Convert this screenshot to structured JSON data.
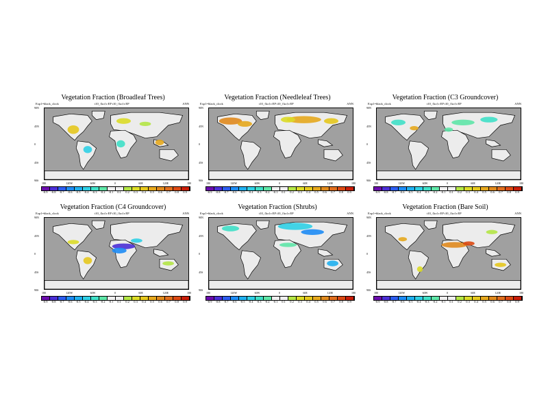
{
  "chart_data": {
    "type": "heatmap",
    "colorbar": {
      "labels": [
        "-0.9",
        "-0.8",
        "-0.7",
        "-0.6",
        "-0.5",
        "-0.4",
        "-0.3",
        "-0.2",
        "-0.1",
        "0.1",
        "0.2",
        "0.3",
        "0.4",
        "0.5",
        "0.6",
        "0.7",
        "0.8",
        "0.9"
      ],
      "colors": [
        "#6a0dad",
        "#4b2fd6",
        "#2d5df0",
        "#1e8cf5",
        "#20b0f0",
        "#30d0e6",
        "#40e0c8",
        "#5fe6a8",
        "#f0f0f0",
        "#f0f0f0",
        "#b4e646",
        "#dcdc28",
        "#e6c81e",
        "#e6a81e",
        "#e08a1e",
        "#e06e1e",
        "#dc4a14",
        "#c81e0a"
      ]
    },
    "x_ticks": [
      "180",
      "120W",
      "60W",
      "0",
      "60E",
      "120E",
      "180"
    ],
    "y_ticks": [
      "90N",
      "45N",
      "0",
      "45S",
      "90S"
    ],
    "panels": [
      {
        "title": "Vegetation Fraction (Broadleaf Trees)",
        "subtitle_left": "Exp1=black_clock",
        "subtitle_mid": "t10_{ko}r:EP  t10_{ko}r:EP",
        "subtitle_right": "ANN",
        "highlights": "broadleaf"
      },
      {
        "title": "Vegetation Fraction (Needleleaf Trees)",
        "subtitle_left": "Exp1=black_clock",
        "subtitle_mid": "t10_{ko}r:EP  t10_{ko}r:EP",
        "subtitle_right": "ANN",
        "highlights": "needleleaf"
      },
      {
        "title": "Vegetation Fraction (C3 Groundcover)",
        "subtitle_left": "Exp1=black_clock",
        "subtitle_mid": "t10_{ko}r:EP  t10_{ko}r:EP",
        "subtitle_right": "ANN",
        "highlights": "c3"
      },
      {
        "title": "Vegetation Fraction (C4 Groundcover)",
        "subtitle_left": "Exp1=black_clock",
        "subtitle_mid": "t10_{ko}r:EP  t10_{ko}r:EP",
        "subtitle_right": "ANN",
        "highlights": "c4"
      },
      {
        "title": "Vegetation Fraction (Shrubs)",
        "subtitle_left": "Exp1=black_clock",
        "subtitle_mid": "t10_{ko}r:EP  t10_{ko}r:EP",
        "subtitle_right": "ANN",
        "highlights": "shrubs"
      },
      {
        "title": "Vegetation Fraction (Bare Soil)",
        "subtitle_left": "Exp1=black_clock",
        "subtitle_mid": "t10_{ko}r:EP  t10_{ko}r:EP",
        "subtitle_right": "ANN",
        "highlights": "baresoil"
      }
    ]
  }
}
